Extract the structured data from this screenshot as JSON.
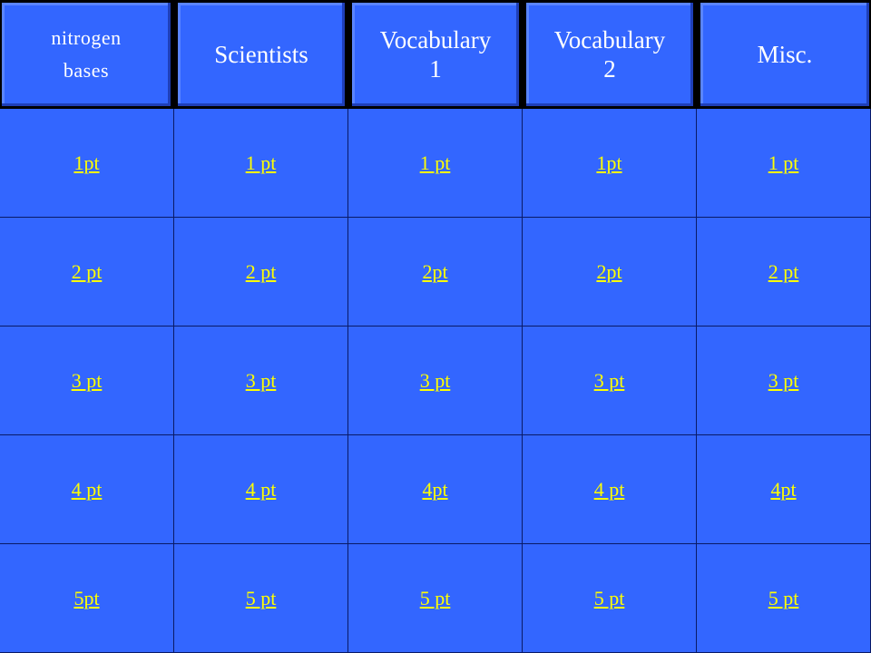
{
  "headers": [
    "nitrogen\nbases",
    "Scientists",
    "Vocabulary\n1",
    "Vocabulary\n2",
    "Misc."
  ],
  "rows": [
    [
      "1pt",
      "1 pt",
      "1 pt",
      "1pt",
      "1 pt"
    ],
    [
      "2 pt",
      "2 pt",
      "2pt",
      "2pt",
      "2 pt"
    ],
    [
      "3 pt",
      "3 pt",
      "3 pt",
      "3 pt",
      "3 pt"
    ],
    [
      "4 pt",
      "4 pt",
      "4pt",
      "4 pt",
      "4pt"
    ],
    [
      "5pt",
      "5 pt",
      "5 pt",
      "5 pt",
      "5 pt"
    ]
  ],
  "colors": {
    "cell_background": "#3366ff",
    "header_text": "#ffffff",
    "link_text": "#ffff00",
    "grid_lines": "#000000"
  }
}
